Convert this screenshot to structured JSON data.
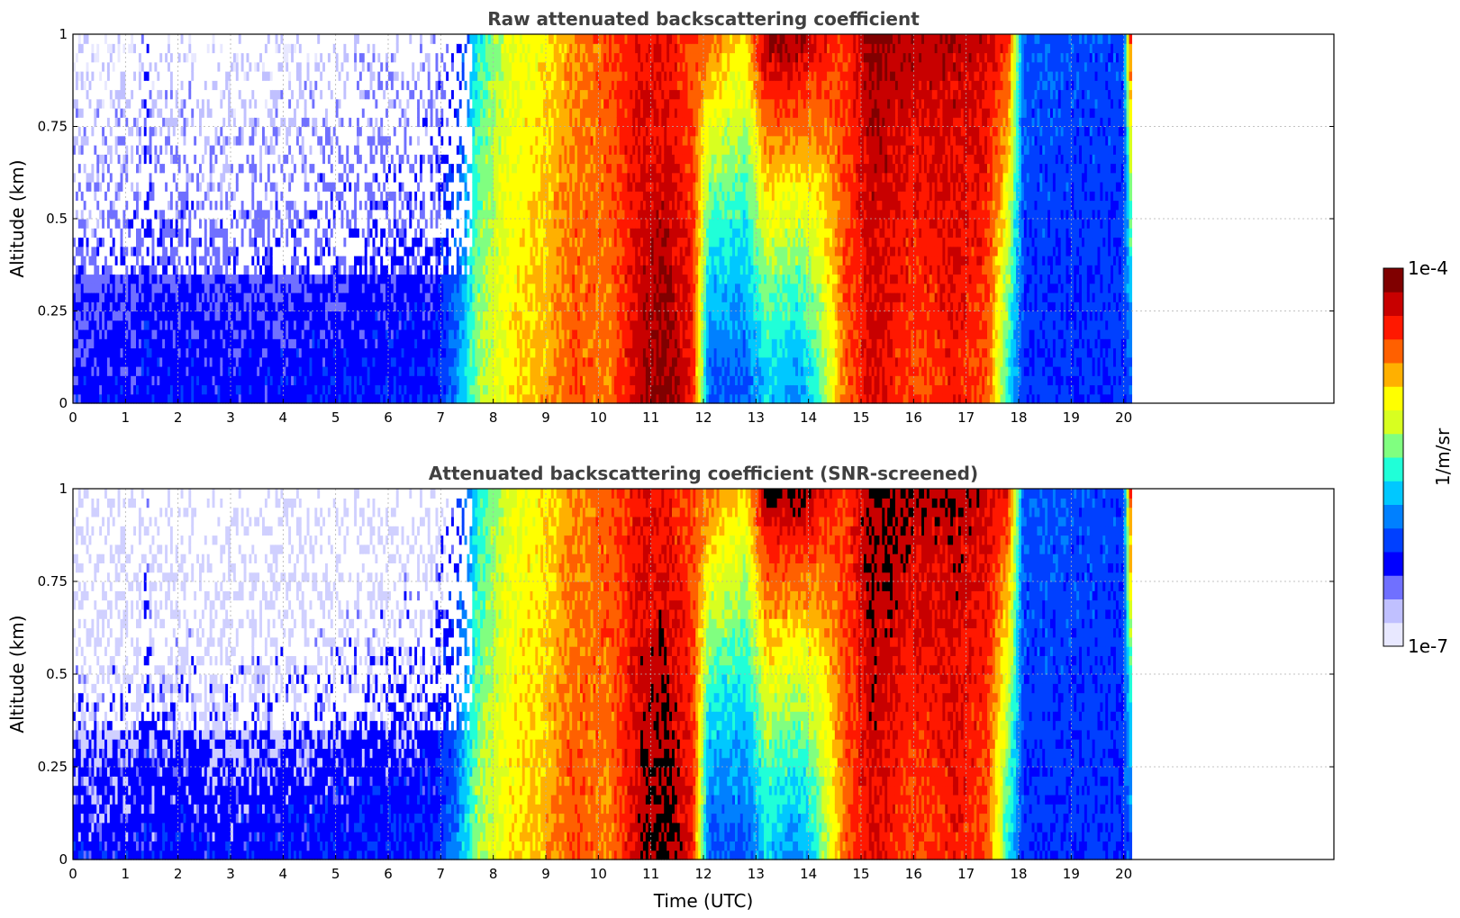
{
  "chart_data": [
    {
      "type": "heatmap",
      "title": "Raw attenuated backscattering coefficient",
      "xlabel": "",
      "ylabel": "Altitude (km)",
      "xlim": [
        0,
        24
      ],
      "ylim": [
        0,
        1
      ],
      "x_ticks": [
        "0",
        "1",
        "2",
        "3",
        "4",
        "5",
        "6",
        "7",
        "8",
        "9",
        "10",
        "11",
        "12",
        "13",
        "14",
        "15",
        "16",
        "17",
        "18",
        "19",
        "20"
      ],
      "y_ticks": [
        "0",
        "0.25",
        "0.5",
        "0.75",
        "1"
      ],
      "data_end_x": 20.15,
      "grid": true,
      "screened": false
    },
    {
      "type": "heatmap",
      "title": "Attenuated backscattering coefficient (SNR-screened)",
      "xlabel": "Time (UTC)",
      "ylabel": "Altitude (km)",
      "xlim": [
        0,
        24
      ],
      "ylim": [
        0,
        1
      ],
      "x_ticks": [
        "0",
        "1",
        "2",
        "3",
        "4",
        "5",
        "6",
        "7",
        "8",
        "9",
        "10",
        "11",
        "12",
        "13",
        "14",
        "15",
        "16",
        "17",
        "18",
        "19",
        "20"
      ],
      "y_ticks": [
        "0",
        "0.25",
        "0.5",
        "0.75",
        "1"
      ],
      "data_end_x": 20.15,
      "grid": true,
      "screened": true
    }
  ],
  "colorbar": {
    "label": "1/m/sr",
    "max_label": "1e-4",
    "min_label": "1e-7",
    "scale": "log",
    "colormap": "jet",
    "colors": [
      "#e8e8ff",
      "#c0c0ff",
      "#7070ff",
      "#0000ff",
      "#0040ff",
      "#0080ff",
      "#00c8ff",
      "#20ffd8",
      "#80ff80",
      "#d8ff20",
      "#ffff00",
      "#ffb000",
      "#ff6000",
      "#ff1800",
      "#c80000",
      "#800000"
    ]
  }
}
